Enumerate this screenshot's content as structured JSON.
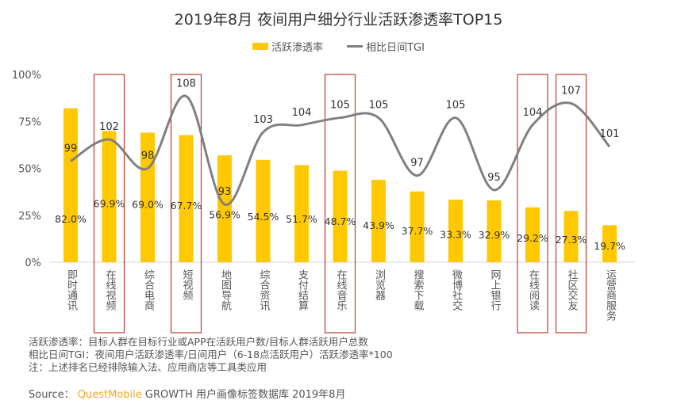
{
  "chart_data": {
    "type": "bar",
    "title": "2019年8月 夜间用户细分行业活跃渗透率TOP15",
    "categories": [
      "即时通讯",
      "在线视频",
      "综合电商",
      "短视频",
      "地图导航",
      "综合资讯",
      "支付结算",
      "在线音乐",
      "浏览器",
      "搜索下载",
      "微博社交",
      "网上银行",
      "在线阅读",
      "社区交友",
      "运营商服务"
    ],
    "series": [
      {
        "name": "活跃渗透率",
        "type": "bar",
        "axis": "left",
        "color": "#FFC800",
        "values": [
          82.0,
          69.9,
          69.0,
          67.7,
          56.9,
          54.5,
          51.7,
          48.7,
          43.9,
          37.7,
          33.3,
          32.9,
          29.2,
          27.3,
          19.7
        ],
        "labels": [
          "82.0%",
          "69.9%",
          "69.0%",
          "67.7%",
          "56.9%",
          "54.5%",
          "51.7%",
          "48.7%",
          "43.9%",
          "37.7%",
          "33.3%",
          "32.9%",
          "29.2%",
          "27.3%",
          "19.7%"
        ]
      },
      {
        "name": "相比日间TGI",
        "type": "line",
        "axis": "right-hidden",
        "color": "#808080",
        "smooth": true,
        "values": [
          99,
          102,
          98,
          108,
          93,
          103,
          104,
          105,
          105,
          97,
          105,
          95,
          104,
          107,
          101
        ]
      }
    ],
    "yticks": [
      "0%",
      "25%",
      "50%",
      "75%",
      "100%"
    ],
    "ylim": [
      0,
      100
    ],
    "y2lim": [
      85,
      111
    ],
    "grid": false,
    "legend": "top",
    "highlighted_categories": [
      "在线视频",
      "短视频",
      "在线音乐",
      "在线阅读",
      "社区交友"
    ],
    "highlight_color": "#C0392B"
  },
  "notes": [
    "活跃渗透率：目标人群在目标行业或APP在活跃用户数/目标人群活跃用户总数",
    "相比日间TGI：夜间用户活跃渗透率/日间用户（6-18点活跃用户）活跃渗透率*100",
    "注：上述排名已经排除输入法、应用商店等工具类应用"
  ],
  "source": {
    "label": "Source：",
    "brand": "QuestMobile",
    "text": "GROWTH 用户画像标签数据库 2019年8月"
  },
  "watermark": "QUESTMOBILE"
}
